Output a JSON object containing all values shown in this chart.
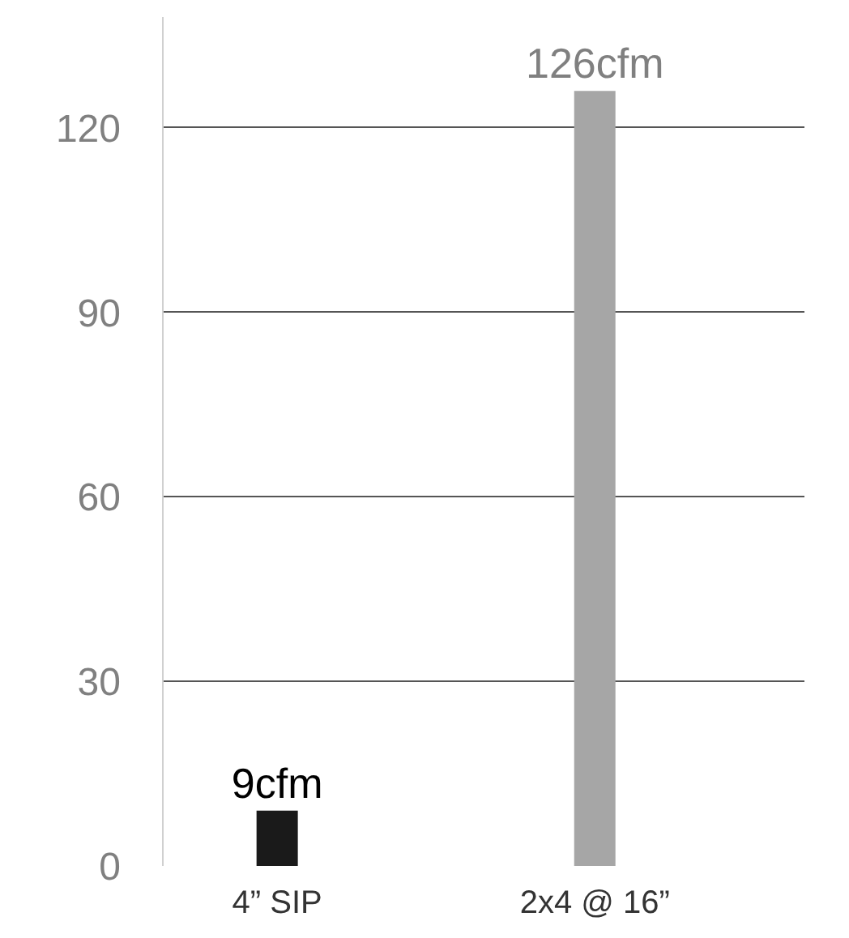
{
  "chart_data": {
    "type": "bar",
    "categories": [
      "4” SIP",
      "2x4 @ 16”"
    ],
    "values": [
      9,
      126
    ],
    "colors": [
      "#1a1a1a",
      "#a6a6a6"
    ],
    "value_labels": [
      "9cfm",
      "126cfm"
    ],
    "ylim": [
      0,
      138
    ],
    "yticks": [
      0,
      30,
      60,
      90,
      120
    ],
    "grid": "y"
  }
}
